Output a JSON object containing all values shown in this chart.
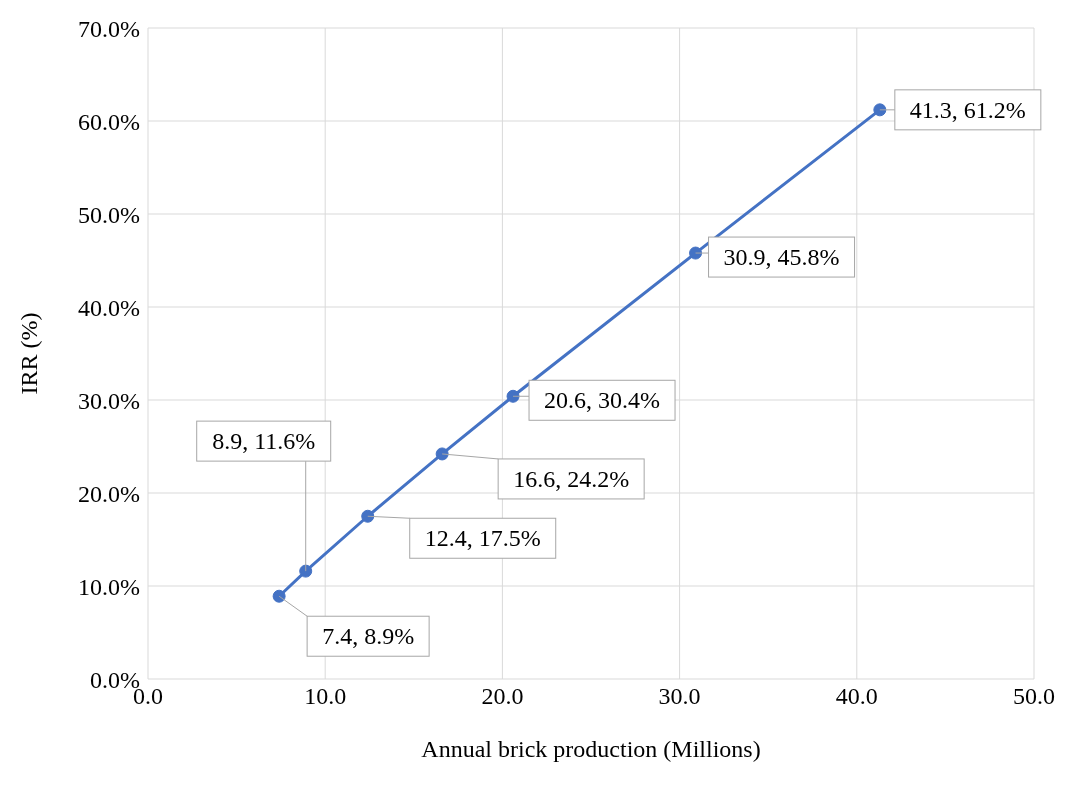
{
  "chart_data": {
    "type": "line",
    "xlabel": "Annual brick production (Millions)",
    "ylabel": "IRR (%)",
    "x": [
      7.4,
      8.9,
      12.4,
      16.6,
      20.6,
      30.9,
      41.3
    ],
    "series": [
      {
        "color": "#4472c4",
        "values": [
          8.9,
          11.6,
          17.5,
          24.2,
          30.4,
          45.8,
          61.2
        ],
        "value_labels": [
          "7.4, 8.9%",
          "8.9, 11.6%",
          "12.4, 17.5%",
          "16.6, 24.2%",
          "20.6, 30.4%",
          "30.9, 45.8%",
          "41.3, 61.2%"
        ]
      }
    ],
    "xlim": [
      0,
      50
    ],
    "xticks": [
      {
        "value": 0,
        "label": "0.0"
      },
      {
        "value": 10,
        "label": "10.0"
      },
      {
        "value": 20,
        "label": "20.0"
      },
      {
        "value": 30,
        "label": "30.0"
      },
      {
        "value": 40,
        "label": "40.0"
      },
      {
        "value": 50,
        "label": "50.0"
      }
    ],
    "ylim": [
      0,
      70
    ],
    "yticks": [
      {
        "value": 0,
        "label": "0.0%"
      },
      {
        "value": 10,
        "label": "10.0%"
      },
      {
        "value": 20,
        "label": "20.0%"
      },
      {
        "value": 30,
        "label": "30.0%"
      },
      {
        "value": 40,
        "label": "40.0%"
      },
      {
        "value": 50,
        "label": "50.0%"
      },
      {
        "value": 60,
        "label": "60.0%"
      },
      {
        "value": 70,
        "label": "70.0%"
      }
    ],
    "grid": true,
    "marker": "circle",
    "line_style": "solid",
    "legend": false
  }
}
